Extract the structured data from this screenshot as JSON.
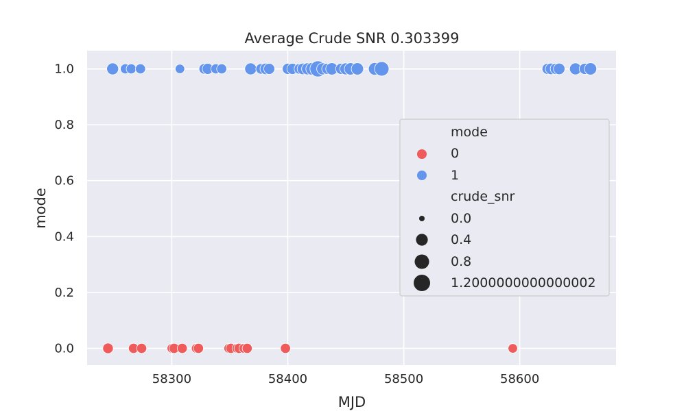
{
  "chart_data": {
    "type": "scatter",
    "title": "Average Crude SNR 0.303399",
    "xlabel": "MJD",
    "ylabel": "mode",
    "xlim": [
      58227,
      58683
    ],
    "ylim": [
      -0.06,
      1.065
    ],
    "xticks": [
      58300,
      58400,
      58500,
      58600
    ],
    "xtick_labels": [
      "58300",
      "58400",
      "58500",
      "58600"
    ],
    "yticks": [
      0.0,
      0.2,
      0.4,
      0.6,
      0.8,
      1.0
    ],
    "ytick_labels": [
      "0.0",
      "0.2",
      "0.4",
      "0.6",
      "0.8",
      "1.0"
    ],
    "grid": true,
    "legend_position": "right",
    "legend": {
      "hue_title": "mode",
      "hue_entries": [
        {
          "label": "0",
          "color": "#ef5a5a"
        },
        {
          "label": "1",
          "color": "#6495ed"
        }
      ],
      "size_title": "crude_snr",
      "size_entries": [
        {
          "label": "0.0",
          "value": 0.0
        },
        {
          "label": "0.4",
          "value": 0.4
        },
        {
          "label": "0.8",
          "value": 0.8
        },
        {
          "label": "1.2000000000000002",
          "value": 1.2
        }
      ]
    },
    "series": [
      {
        "name": "0",
        "color": "#ef5a5a",
        "points": [
          {
            "x": 58245,
            "y": 0,
            "snr": 0.25
          },
          {
            "x": 58267,
            "y": 0,
            "snr": 0.2
          },
          {
            "x": 58274,
            "y": 0,
            "snr": 0.2
          },
          {
            "x": 58300,
            "y": 0,
            "snr": 0.15
          },
          {
            "x": 58302,
            "y": 0,
            "snr": 0.2
          },
          {
            "x": 58309,
            "y": 0,
            "snr": 0.2
          },
          {
            "x": 58321,
            "y": 0,
            "snr": 0.15
          },
          {
            "x": 58323,
            "y": 0,
            "snr": 0.2
          },
          {
            "x": 58349,
            "y": 0,
            "snr": 0.15
          },
          {
            "x": 58351,
            "y": 0,
            "snr": 0.2
          },
          {
            "x": 58356,
            "y": 0,
            "snr": 0.15
          },
          {
            "x": 58358,
            "y": 0,
            "snr": 0.2
          },
          {
            "x": 58362,
            "y": 0,
            "snr": 0.15
          },
          {
            "x": 58365,
            "y": 0,
            "snr": 0.2
          },
          {
            "x": 58398,
            "y": 0,
            "snr": 0.2
          },
          {
            "x": 58594,
            "y": 0,
            "snr": 0.15
          }
        ]
      },
      {
        "name": "1",
        "color": "#6495ed",
        "points": [
          {
            "x": 58249,
            "y": 1,
            "snr": 0.4
          },
          {
            "x": 58260,
            "y": 1,
            "snr": 0.2
          },
          {
            "x": 58265,
            "y": 1,
            "snr": 0.2
          },
          {
            "x": 58273,
            "y": 1,
            "snr": 0.2
          },
          {
            "x": 58307,
            "y": 1,
            "snr": 0.15
          },
          {
            "x": 58328,
            "y": 1,
            "snr": 0.25
          },
          {
            "x": 58331,
            "y": 1,
            "snr": 0.3
          },
          {
            "x": 58338,
            "y": 1,
            "snr": 0.2
          },
          {
            "x": 58343,
            "y": 1,
            "snr": 0.2
          },
          {
            "x": 58368,
            "y": 1,
            "snr": 0.4
          },
          {
            "x": 58377,
            "y": 1,
            "snr": 0.25
          },
          {
            "x": 58381,
            "y": 1,
            "snr": 0.35
          },
          {
            "x": 58384,
            "y": 1,
            "snr": 0.3
          },
          {
            "x": 58400,
            "y": 1,
            "snr": 0.3
          },
          {
            "x": 58404,
            "y": 1,
            "snr": 0.3
          },
          {
            "x": 58410,
            "y": 1,
            "snr": 0.25
          },
          {
            "x": 58413,
            "y": 1,
            "snr": 0.35
          },
          {
            "x": 58417,
            "y": 1,
            "snr": 0.4
          },
          {
            "x": 58421,
            "y": 1,
            "snr": 0.5
          },
          {
            "x": 58426,
            "y": 1,
            "snr": 1.1
          },
          {
            "x": 58430,
            "y": 1,
            "snr": 0.4
          },
          {
            "x": 58434,
            "y": 1,
            "snr": 0.3
          },
          {
            "x": 58438,
            "y": 1,
            "snr": 0.45
          },
          {
            "x": 58446,
            "y": 1,
            "snr": 0.3
          },
          {
            "x": 58450,
            "y": 1,
            "snr": 0.4
          },
          {
            "x": 58454,
            "y": 1,
            "snr": 0.45
          },
          {
            "x": 58460,
            "y": 1,
            "snr": 0.45
          },
          {
            "x": 58475,
            "y": 1,
            "snr": 0.5
          },
          {
            "x": 58481,
            "y": 1,
            "snr": 0.8
          },
          {
            "x": 58624,
            "y": 1,
            "snr": 0.3
          },
          {
            "x": 58627,
            "y": 1,
            "snr": 0.35
          },
          {
            "x": 58631,
            "y": 1,
            "snr": 0.3
          },
          {
            "x": 58634,
            "y": 1,
            "snr": 0.35
          },
          {
            "x": 58648,
            "y": 1,
            "snr": 0.4
          },
          {
            "x": 58656,
            "y": 1,
            "snr": 0.3
          },
          {
            "x": 58661,
            "y": 1,
            "snr": 0.45
          }
        ]
      }
    ]
  }
}
